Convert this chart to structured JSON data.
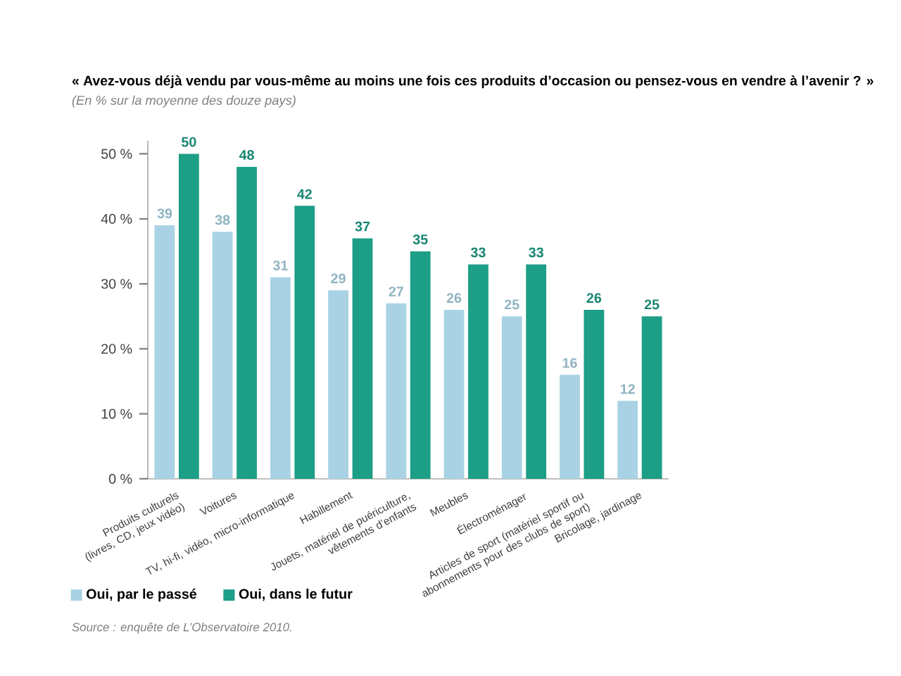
{
  "chart_data": {
    "type": "bar",
    "title": "« Avez-vous déjà vendu par vous-même au moins une fois ces produits d’occasion ou pensez-vous en vendre à l’avenir ? »",
    "subtitle": "(En % sur la moyenne des douze pays)",
    "categories": [
      "Produits culturels (livres, CD, jeux vidéo)",
      "Voitures",
      "TV, hi-fi, vidéo, micro-informatique",
      "Habillement",
      "Jouets, matériel de puériculture, vêtements d’enfants",
      "Meubles",
      "Électroménager",
      "Articles de sport (matériel sportif ou abonnements pour des clubs de sport)",
      "Bricolage, jardinage"
    ],
    "series": [
      {
        "name": "Oui, par le passé",
        "color": "#a9d3e4",
        "values": [
          39,
          38,
          31,
          29,
          27,
          26,
          25,
          16,
          12
        ]
      },
      {
        "name": "Oui, dans le futur",
        "color": "#1d9e86",
        "values": [
          50,
          48,
          42,
          37,
          35,
          33,
          33,
          26,
          25
        ]
      }
    ],
    "ylim": [
      0,
      52
    ],
    "yticks": [
      {
        "value": 0,
        "label": "0 %"
      },
      {
        "value": 10,
        "label": "10 %"
      },
      {
        "value": 20,
        "label": "20 %"
      },
      {
        "value": 30,
        "label": "30 %"
      },
      {
        "value": 40,
        "label": "40 %"
      },
      {
        "value": 50,
        "label": "50 %"
      }
    ],
    "data_labels": true,
    "grid": false,
    "legend": "bottom left",
    "annotations": [
      "Source : enquête de L’Observatoire 2010."
    ]
  }
}
